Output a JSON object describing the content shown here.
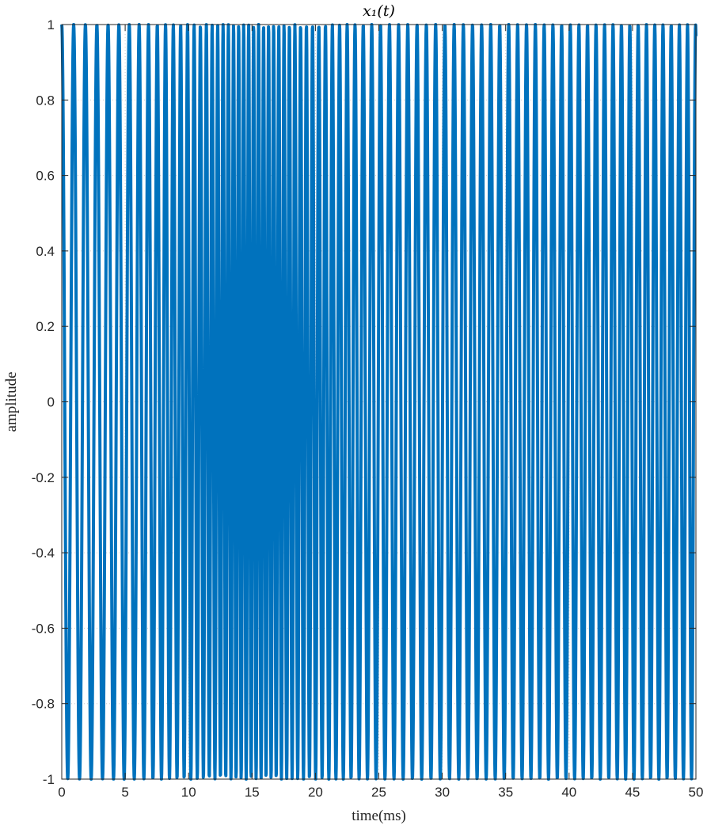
{
  "chart_data": {
    "type": "line",
    "title": "x₁(t)",
    "xlabel": "time(ms)",
    "ylabel": "amplitude",
    "xlim": [
      0,
      50
    ],
    "ylim": [
      -1,
      1
    ],
    "grid": true,
    "x_ticks": [
      0,
      5,
      10,
      15,
      20,
      25,
      30,
      35,
      40,
      45,
      50
    ],
    "x_tick_labels": [
      "0",
      "5",
      "10",
      "15",
      "20",
      "25",
      "30",
      "35",
      "40",
      "45",
      "50"
    ],
    "y_ticks": [
      -1,
      -0.8,
      -0.6,
      -0.4,
      -0.2,
      0,
      0.2,
      0.4,
      0.6,
      0.8,
      1
    ],
    "y_tick_labels": [
      "-1",
      "-0.8",
      "-0.6",
      "-0.4",
      "-0.2",
      "0",
      "0.2",
      "0.4",
      "0.6",
      "0.8",
      "1"
    ],
    "series": [
      {
        "color": "#0072BD",
        "signal": {
          "kind": "cosine",
          "sample_spacing_ms": 0.2,
          "cycles_per_ms_at_t0": 1.05,
          "cycles_per_ms_at_t50": 1.57,
          "note_peak_density_near_ms": 15
        },
        "x": [
          0,
          0.2,
          0.4,
          0.6,
          0.8,
          1.0,
          1.2,
          1.4,
          1.6,
          1.8,
          2.0,
          2.2,
          2.4,
          2.6,
          2.8,
          3.0,
          3.2,
          3.4,
          3.6,
          3.8,
          4.0,
          4.2,
          4.4,
          4.6,
          4.8,
          5.0,
          5.2,
          5.4,
          5.6,
          5.8,
          6.0,
          6.2,
          6.4,
          6.6,
          6.8,
          7.0,
          7.2,
          7.4,
          7.6,
          7.8,
          8.0,
          8.2,
          8.4,
          8.6,
          8.8,
          9.0,
          9.2,
          9.4,
          9.6,
          9.8,
          10.0,
          10.2,
          10.4,
          10.6,
          10.8,
          11.0,
          11.2,
          11.4,
          11.6,
          11.8,
          12.0,
          12.2,
          12.4,
          12.6,
          12.8,
          13.0,
          13.2,
          13.4,
          13.6,
          13.8,
          14.0,
          14.2,
          14.4,
          14.6,
          14.8,
          15.0,
          15.2,
          15.4,
          15.6,
          15.8,
          16.0,
          16.2,
          16.4,
          16.6,
          16.8,
          17.0,
          17.2,
          17.4,
          17.6,
          17.8,
          18.0,
          18.2,
          18.4,
          18.6,
          18.8,
          19.0,
          19.2,
          19.4,
          19.6,
          19.8,
          20.0,
          20.2,
          20.4,
          20.6,
          20.8,
          21.0,
          21.2,
          21.4,
          21.6,
          21.8,
          22.0,
          22.2,
          22.4,
          22.6,
          22.8,
          23.0,
          23.2,
          23.4,
          23.6,
          23.8,
          24.0,
          24.2,
          24.4,
          24.6,
          24.8,
          25.0,
          25.2,
          25.4,
          25.6,
          25.8,
          26.0,
          26.2,
          26.4,
          26.6,
          26.8,
          27.0,
          27.2,
          27.4,
          27.6,
          27.8,
          28.0,
          28.2,
          28.4,
          28.6,
          28.8,
          29.0,
          29.2,
          29.4,
          29.6,
          29.8,
          30.0,
          30.2,
          30.4,
          30.6,
          30.8,
          31.0,
          31.2,
          31.4,
          31.6,
          31.8,
          32.0,
          32.2,
          32.4,
          32.6,
          32.8,
          33.0,
          33.2,
          33.4,
          33.6,
          33.8,
          34.0,
          34.2,
          34.4,
          34.6,
          34.8,
          35.0,
          35.2,
          35.4,
          35.6,
          35.8,
          36.0,
          36.2,
          36.4,
          36.6,
          36.8,
          37.0,
          37.2,
          37.4,
          37.6,
          37.8,
          38.0,
          38.2,
          38.4,
          38.6,
          38.8,
          39.0,
          39.2,
          39.4,
          39.6,
          39.8,
          40.0,
          40.2,
          40.4,
          40.6,
          40.8,
          41.0,
          41.2,
          41.4,
          41.6,
          41.8,
          42.0,
          42.2,
          42.4,
          42.6,
          42.8,
          43.0,
          43.2,
          43.4,
          43.6,
          43.8,
          44.0,
          44.2,
          44.4,
          44.6,
          44.8,
          45.0,
          45.2,
          45.4,
          45.6,
          45.8,
          46.0,
          46.2,
          46.4,
          46.6,
          46.8,
          47.0,
          47.2,
          47.4,
          47.6,
          47.8,
          48.0,
          48.2,
          48.4,
          48.6,
          48.8,
          49.0,
          49.2,
          49.4,
          49.6,
          49.8,
          50.0
        ]
      }
    ]
  }
}
